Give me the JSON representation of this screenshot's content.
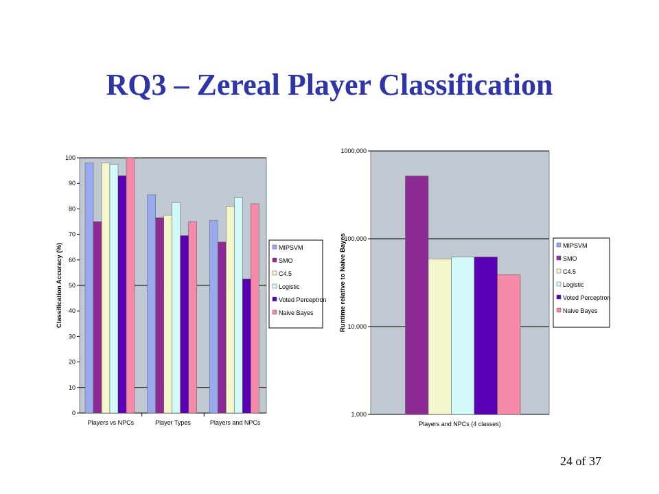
{
  "slide": {
    "title": "RQ3 – Zereal Player Classification",
    "page_number": "24 of 37"
  },
  "chart_data": [
    {
      "type": "bar",
      "title": "",
      "xlabel": "",
      "ylabel": "Classification Accuracy (%)",
      "ylim": [
        0,
        100
      ],
      "yticks": [
        0,
        10,
        20,
        30,
        40,
        50,
        60,
        70,
        80,
        90,
        100
      ],
      "ytick_labels": [
        "0",
        "10",
        "20",
        "30",
        "40",
        "50",
        "60",
        "70",
        "80",
        "90",
        "100"
      ],
      "grid": "horizontal at 10, 50, 100",
      "legend": "right",
      "categories": [
        "Players vs NPCs",
        "Player Types",
        "Players and NPCs"
      ],
      "series": [
        {
          "name": "MIPSVM",
          "color": "#99aaee",
          "values": [
            98,
            85.5,
            75.5
          ]
        },
        {
          "name": "SMO",
          "color": "#8e2a93",
          "values": [
            75,
            76.5,
            67
          ]
        },
        {
          "name": "C4.5",
          "color": "#f5f5cc",
          "values": [
            98,
            77.5,
            81
          ]
        },
        {
          "name": "Logistic",
          "color": "#d2fafa",
          "values": [
            97.5,
            82.5,
            84.5
          ]
        },
        {
          "name": "Voted Perceptron",
          "color": "#5a00b4",
          "values": [
            93,
            69.5,
            52.5
          ]
        },
        {
          "name": "Naive Bayes",
          "color": "#f58aa8",
          "values": [
            100,
            75,
            82
          ]
        }
      ]
    },
    {
      "type": "bar",
      "title": "",
      "xlabel": "",
      "ylabel": "Runtime relative to Naive Bayes",
      "yscale": "log",
      "ylim": [
        1000,
        1000000
      ],
      "yticks": [
        1000,
        10000,
        100000,
        1000000
      ],
      "ytick_labels": [
        "1,000",
        "10,000",
        "100,000",
        "1000,000"
      ],
      "grid": "horizontal at major ticks",
      "legend": "right",
      "categories": [
        "Players and NPCs (4 classes)"
      ],
      "series": [
        {
          "name": "MIPSVM",
          "color": "#99aaee",
          "values": [
            null
          ]
        },
        {
          "name": "SMO",
          "color": "#8e2a93",
          "values": [
            520000
          ]
        },
        {
          "name": "C4.5",
          "color": "#f5f5cc",
          "values": [
            59000
          ]
        },
        {
          "name": "Logistic",
          "color": "#d2fafa",
          "values": [
            62000
          ]
        },
        {
          "name": "Voted Perceptron",
          "color": "#5a00b4",
          "values": [
            62000
          ]
        },
        {
          "name": "Naive Bayes",
          "color": "#f58aa8",
          "values": [
            39000
          ]
        }
      ]
    }
  ]
}
